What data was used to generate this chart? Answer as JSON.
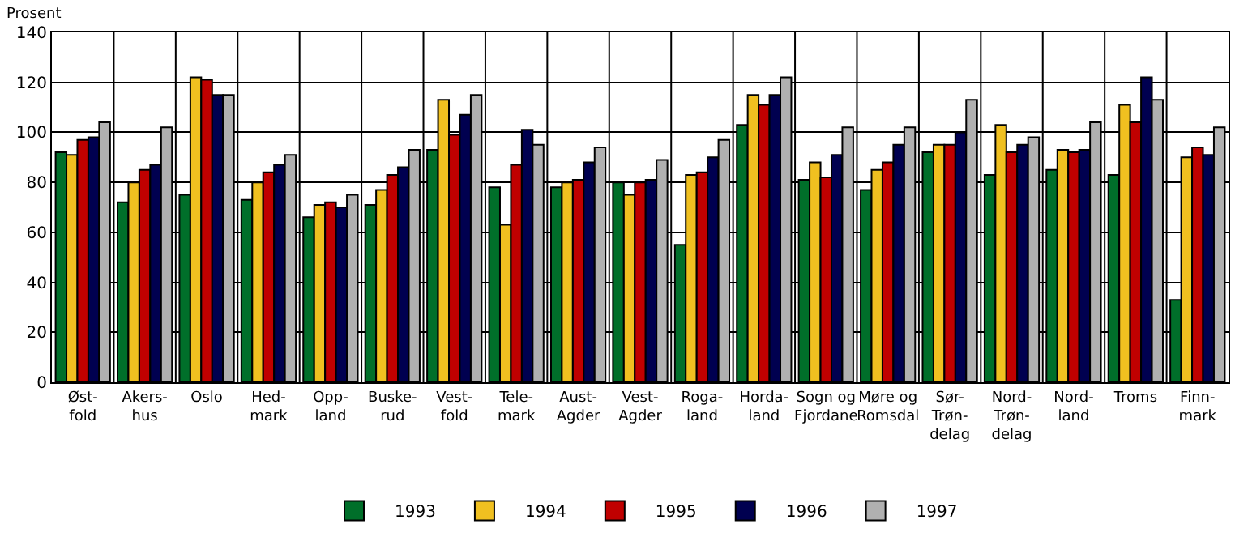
{
  "chart_data": {
    "type": "bar",
    "ylabel": "Prosent",
    "categories": [
      "Øst-\nfold",
      "Akers-\nhus",
      "Oslo",
      "Hed-\nmark",
      "Opp-\nland",
      "Buske-\nrud",
      "Vest-\nfold",
      "Tele-\nmark",
      "Aust-\nAgder",
      "Vest-\nAgder",
      "Roga-\nland",
      "Horda-\nland",
      "Sogn og\nFjordane",
      "Møre og\nRomsdal",
      "Sør-\nTrøn-\ndelag",
      "Nord-\nTrøn-\ndelag",
      "Nord-\nland",
      "Troms",
      "Finn-\nmark"
    ],
    "series": [
      {
        "name": "1993",
        "color": "#006f2a",
        "values": [
          92,
          72,
          75,
          73,
          66,
          71,
          93,
          78,
          78,
          80,
          55,
          103,
          81,
          77,
          92,
          83,
          85,
          83,
          33
        ]
      },
      {
        "name": "1994",
        "color": "#f0c020",
        "values": [
          91,
          80,
          122,
          80,
          71,
          77,
          113,
          63,
          80,
          75,
          83,
          115,
          88,
          85,
          95,
          103,
          93,
          111,
          90
        ]
      },
      {
        "name": "1995",
        "color": "#c00000",
        "values": [
          97,
          85,
          121,
          84,
          72,
          83,
          99,
          87,
          81,
          80,
          84,
          111,
          82,
          88,
          95,
          92,
          92,
          104,
          94
        ]
      },
      {
        "name": "1996",
        "color": "#000050",
        "values": [
          98,
          87,
          115,
          87,
          70,
          86,
          107,
          101,
          88,
          81,
          90,
          115,
          91,
          95,
          100,
          95,
          93,
          122,
          91
        ]
      },
      {
        "name": "1997",
        "color": "#b0b0b0",
        "values": [
          104,
          102,
          115,
          91,
          75,
          93,
          115,
          95,
          94,
          89,
          97,
          122,
          102,
          102,
          113,
          98,
          104,
          113,
          102
        ]
      }
    ],
    "ylim": [
      0,
      140
    ],
    "yticks": [
      0,
      20,
      40,
      60,
      80,
      100,
      120,
      140
    ],
    "grid": true,
    "legend": "bottom"
  }
}
